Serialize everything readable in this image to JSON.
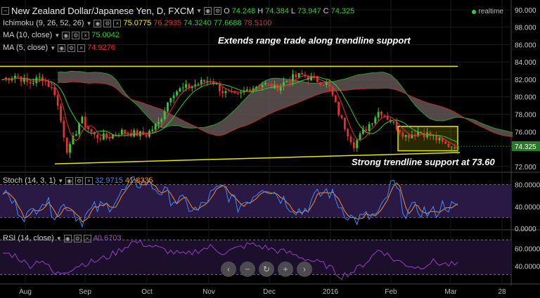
{
  "header": {
    "title": "New Zealand Dollar/Japanese Yen, D, FXCM",
    "o": "74.248",
    "h": "74.384",
    "l": "73.947",
    "c": "74.325",
    "realtime": "realtime"
  },
  "indicators": {
    "ichimoku": {
      "label": "Ichimoku (9, 26, 52, 26)",
      "v1": "75.0775",
      "v2": "76.2935",
      "v3": "74.3240",
      "v4": "77.6688",
      "v5": "78.5100"
    },
    "ma10": {
      "label": "MA (10, close)",
      "value": "75.0042"
    },
    "ma5": {
      "label": "MA (5, close)",
      "value": "74.9276"
    },
    "stoch": {
      "label": "Stoch (14, 3, 1)",
      "k": "32.9715",
      "d": "41.8335"
    },
    "rsi": {
      "label": "RSI (14, close)",
      "value": "40.6703"
    }
  },
  "annotations": {
    "top": "Extends range trade along trendline support",
    "bottom": "Strong trendline support at 73.60"
  },
  "price_tag": "74.325",
  "zoom_controls": [
    "‹",
    "−",
    "↻",
    "+",
    "›"
  ],
  "colors": {
    "up": "#33cc33",
    "down": "#e53030",
    "ma10": "#33cc33",
    "ma5": "#e53030",
    "trend": "#e6e600",
    "cloud": "#6e6060",
    "stochK": "#3c8cff",
    "stochD": "#ff8c1a",
    "rsi": "#9c3cc8",
    "band": "#2a1845"
  },
  "chart_data": {
    "type": "candlestick",
    "title": "New Zealand Dollar/Japanese Yen, D, FXCM",
    "x_ticks": [
      "Aug",
      "Sep",
      "Oct",
      "Nov",
      "Dec",
      "2016",
      "Feb",
      "Mar",
      "28"
    ],
    "price_axis": {
      "ticks": [
        "90.000",
        "88.000",
        "86.000",
        "84.000",
        "82.000",
        "80.000",
        "78.000",
        "76.000",
        "72.000"
      ],
      "ylim": [
        71.5,
        90.8
      ]
    },
    "stoch_axis": {
      "ticks": [
        "80.0000",
        "40.0000",
        "0.0000"
      ],
      "ylim": [
        0,
        100
      ],
      "band": [
        20,
        80
      ]
    },
    "rsi_axis": {
      "ticks": [
        "60.0000",
        "40.0000"
      ],
      "ylim": [
        20,
        80
      ],
      "band": [
        30,
        70
      ]
    },
    "resistance_line": {
      "from": 83.5,
      "to": 83.5
    },
    "support_line": {
      "from": 72.3,
      "to": 73.6
    },
    "consolidation_box": {
      "ylow": 73.8,
      "yhigh": 76.6
    },
    "close_anchors": [
      82.0,
      82.5,
      81.5,
      82.3,
      80.5,
      73.5,
      77.5,
      75.5,
      75.3,
      76.0,
      75.8,
      75.6,
      77.0,
      80.5,
      81.0,
      81.5,
      82.0,
      80.5,
      80.0,
      81.0,
      81.5,
      81.0,
      82.0,
      82.5,
      82.0,
      81.5,
      77.5,
      74.5,
      76.5,
      78.5,
      77.0,
      75.5,
      76.0,
      75.5,
      74.5,
      74.325
    ],
    "stoch_values": [
      70,
      40,
      20,
      55,
      30,
      45,
      15,
      35,
      40,
      60,
      82,
      85,
      70,
      55,
      45,
      30,
      60,
      75,
      40,
      55,
      80,
      65,
      45,
      30,
      55,
      70,
      40,
      15,
      20,
      25,
      85,
      30,
      35,
      25,
      45,
      33
    ],
    "rsi_values": [
      55,
      52,
      40,
      48,
      30,
      35,
      42,
      45,
      50,
      58,
      68,
      65,
      60,
      56,
      52,
      58,
      62,
      55,
      60,
      65,
      62,
      58,
      55,
      50,
      45,
      40,
      28,
      34,
      45,
      60,
      48,
      42,
      38,
      45,
      42,
      40.67
    ]
  }
}
